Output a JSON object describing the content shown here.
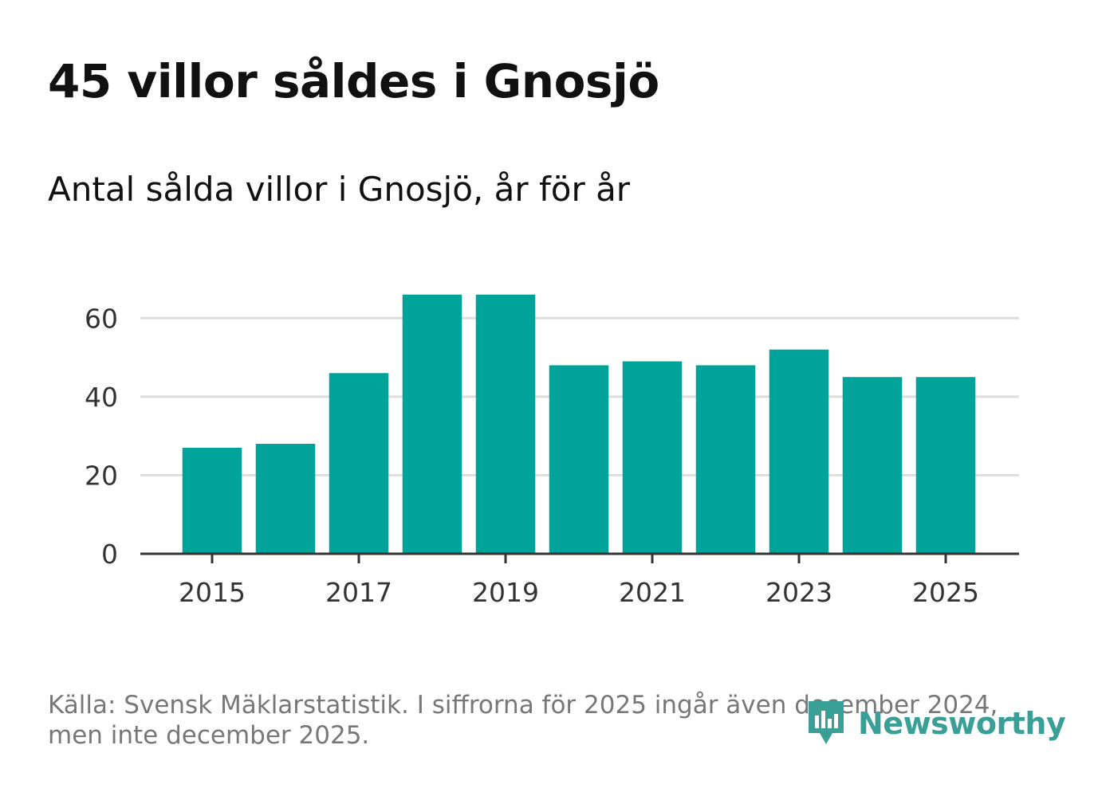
{
  "title": "45 villor såldes i Gnosjö",
  "subtitle": "Antal sålda villor i Gnosjö, år för år",
  "footer": "Källa: Svensk Mäklarstatistik. I siffrorna för 2025 ingår även december 2024, men inte december 2025.",
  "brand": {
    "name": "Newsworthy",
    "color": "#3a9f97"
  },
  "colors": {
    "bar": "#00a399",
    "grid": "#dddddd",
    "axis": "#333333",
    "tick_text": "#333333"
  },
  "chart_data": {
    "type": "bar",
    "title": "Antal sålda villor i Gnosjö, år för år",
    "xlabel": "",
    "ylabel": "",
    "categories": [
      "2015",
      "2016",
      "2017",
      "2018",
      "2019",
      "2020",
      "2021",
      "2022",
      "2023",
      "2024",
      "2025"
    ],
    "values": [
      27,
      28,
      46,
      66,
      66,
      48,
      49,
      48,
      52,
      45,
      45
    ],
    "ylim": [
      0,
      70
    ],
    "yticks": [
      0,
      20,
      40,
      60
    ],
    "xtick_labels": [
      "2015",
      "2017",
      "2019",
      "2021",
      "2023",
      "2025"
    ],
    "grid": true,
    "legend": "none"
  }
}
